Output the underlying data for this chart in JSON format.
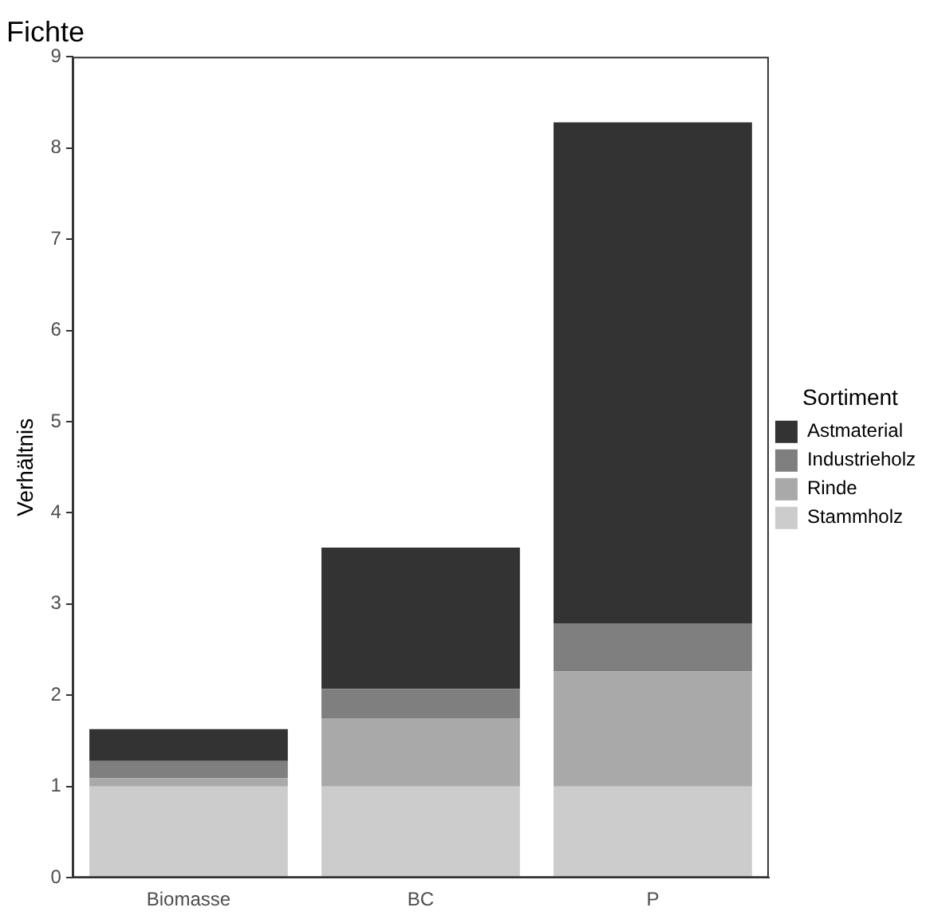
{
  "chart_data": {
    "type": "bar",
    "title": "Fichte",
    "ylabel": "Verhältnis",
    "legend_title": "Sortiment",
    "categories": [
      "Biomasse",
      "BC",
      "P"
    ],
    "stacked": true,
    "ylim": [
      0,
      9
    ],
    "yticks": [
      0,
      1,
      2,
      3,
      4,
      5,
      6,
      7,
      8,
      9
    ],
    "grid": false,
    "legend": "right",
    "series": [
      {
        "name": "Stammholz",
        "color": "#cccccc",
        "values": [
          1.0,
          1.0,
          1.0
        ]
      },
      {
        "name": "Rinde",
        "color": "#a9a9a9",
        "values": [
          0.09,
          0.75,
          1.26
        ]
      },
      {
        "name": "Industrieholz",
        "color": "#7f7f7f",
        "values": [
          0.19,
          0.32,
          0.53
        ]
      },
      {
        "name": "Astmaterial",
        "color": "#333333",
        "values": [
          0.35,
          1.55,
          5.49
        ]
      }
    ]
  }
}
